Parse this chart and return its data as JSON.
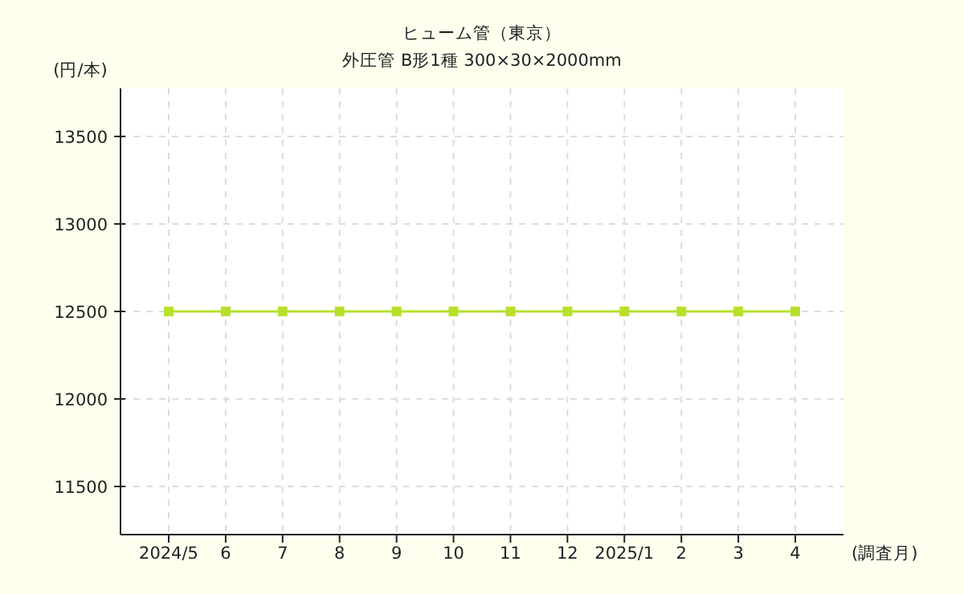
{
  "chart_data": {
    "type": "line",
    "title": "ヒューム管（東京）",
    "subtitle": "外圧管 B形1種 300×30×2000mm",
    "ylabel": "(円/本)",
    "xlabel": "(調査月)",
    "categories": [
      "2024/5",
      "6",
      "7",
      "8",
      "9",
      "10",
      "11",
      "12",
      "2025/1",
      "2",
      "3",
      "4"
    ],
    "series": [
      {
        "color": "#b8e02a",
        "values": [
          12500,
          12500,
          12500,
          12500,
          12500,
          12500,
          12500,
          12500,
          12500,
          12500,
          12500,
          12500
        ]
      }
    ],
    "ylim": [
      11225,
      13775
    ],
    "yticks": [
      11500,
      12000,
      12500,
      13000,
      13500
    ],
    "grid": true,
    "marker": "square",
    "line_style": "solid"
  }
}
